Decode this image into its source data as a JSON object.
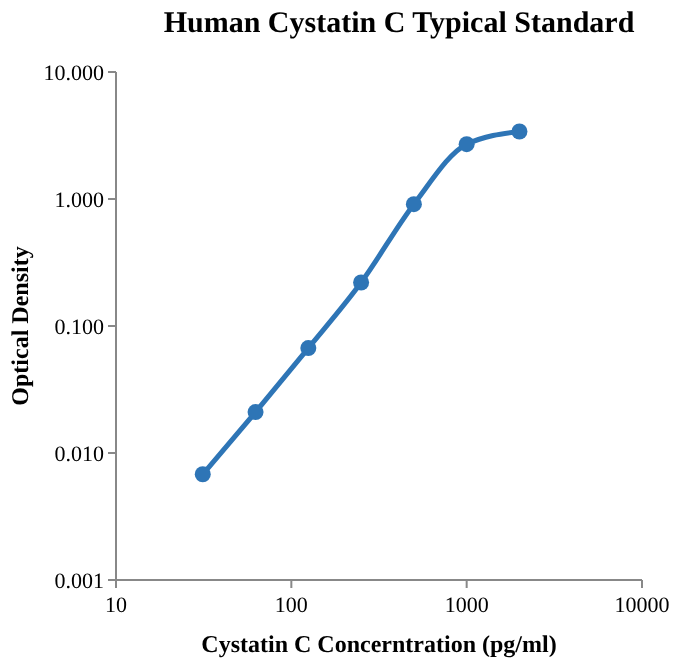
{
  "chart_data": {
    "type": "line",
    "title": "Human Cystatin C Typical Standard",
    "xlabel": "Cystatin C Concerntration (pg/ml)",
    "ylabel": "Optical Density",
    "log": "xy",
    "xlim": [
      10,
      10000
    ],
    "ylim": [
      0.001,
      10
    ],
    "xticks": [
      10,
      100,
      1000,
      10000
    ],
    "yticks": [
      {
        "value": 0.001,
        "label": "0.001"
      },
      {
        "value": 0.01,
        "label": "0.010"
      },
      {
        "value": 0.1,
        "label": "0.100"
      },
      {
        "value": 1,
        "label": "1.000"
      },
      {
        "value": 10,
        "label": "10.000"
      }
    ],
    "grid": false,
    "marker": "circle",
    "line_style": "solid",
    "x": [
      31.25,
      62.5,
      125,
      250,
      500,
      1000,
      2000
    ],
    "series": [
      {
        "color": "#2e75b6",
        "values": [
          0.0068,
          0.021,
          0.067,
          0.22,
          0.91,
          2.7,
          3.4
        ]
      }
    ]
  }
}
